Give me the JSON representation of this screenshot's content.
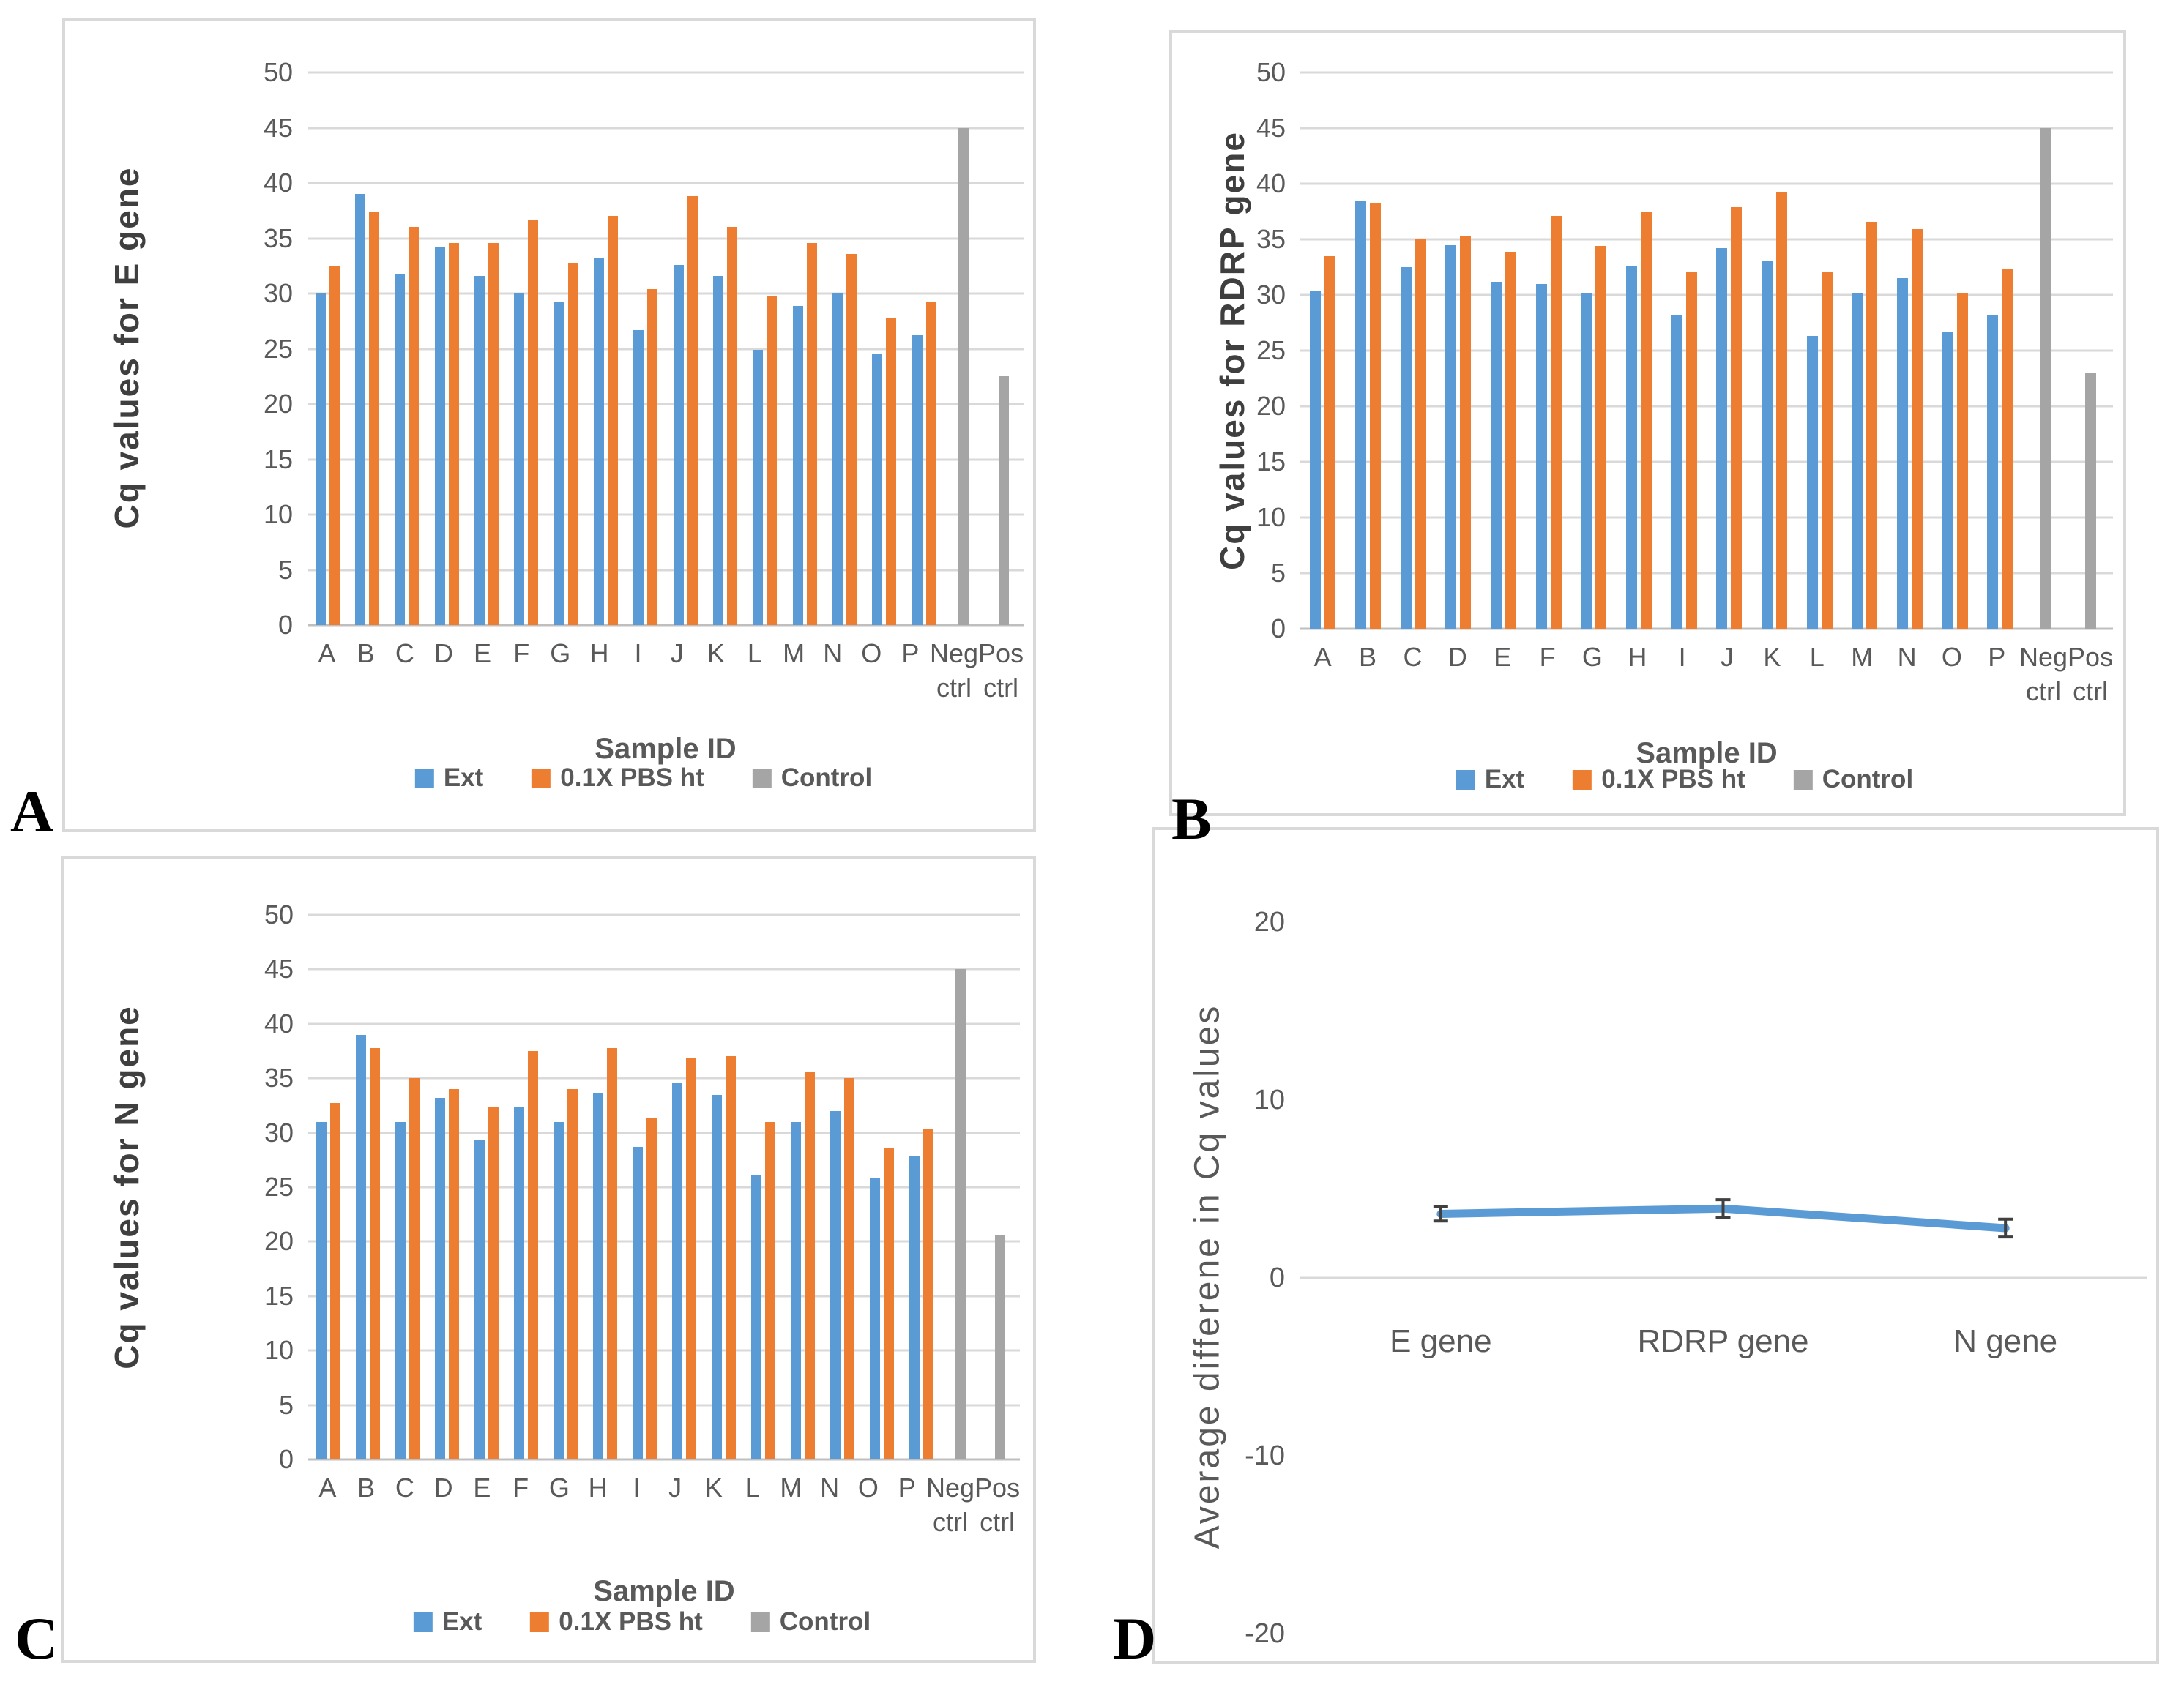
{
  "panel_letters": [
    "A",
    "B",
    "C",
    "D"
  ],
  "colors": {
    "ext_blue": "#5B9BD5",
    "pbs_orange": "#ED7D31",
    "control_gray": "#A5A5A5",
    "gridline": "#D9D9D9",
    "text_gray": "#595959",
    "error_bar": "#404040"
  },
  "chart_data": [
    {
      "id": "A",
      "type": "bar",
      "ylabel": "Cq values for E gene",
      "xlabel": "Sample ID",
      "ylim": [
        0,
        50
      ],
      "ytick_step": 5,
      "grid": true,
      "legend_position": "bottom",
      "categories": [
        "A",
        "B",
        "C",
        "D",
        "E",
        "F",
        "G",
        "H",
        "I",
        "J",
        "K",
        "L",
        "M",
        "N",
        "O",
        "P",
        "Neg ctrl",
        "Pos ctrl"
      ],
      "series": [
        {
          "name": "Ext",
          "color": "#5B9BD5",
          "values": [
            30.0,
            39.0,
            31.8,
            34.2,
            31.6,
            30.1,
            29.2,
            33.2,
            26.7,
            32.6,
            31.6,
            24.9,
            28.9,
            30.1,
            24.6,
            26.2,
            null,
            null
          ]
        },
        {
          "name": "0.1X PBS ht",
          "color": "#ED7D31",
          "values": [
            32.5,
            37.4,
            36.0,
            34.6,
            34.6,
            36.6,
            32.8,
            37.0,
            30.4,
            38.8,
            36.0,
            29.8,
            34.6,
            33.6,
            27.8,
            29.2,
            null,
            null
          ]
        },
        {
          "name": "Control",
          "color": "#A5A5A5",
          "values": [
            null,
            null,
            null,
            null,
            null,
            null,
            null,
            null,
            null,
            null,
            null,
            null,
            null,
            null,
            null,
            null,
            45,
            22.5
          ]
        }
      ]
    },
    {
      "id": "B",
      "type": "bar",
      "ylabel": "Cq values for RDRP gene",
      "xlabel": "Sample ID",
      "ylim": [
        0,
        50
      ],
      "ytick_step": 5,
      "grid": true,
      "legend_position": "bottom",
      "categories": [
        "A",
        "B",
        "C",
        "D",
        "E",
        "F",
        "G",
        "H",
        "I",
        "J",
        "K",
        "L",
        "M",
        "N",
        "O",
        "P",
        "Neg ctrl",
        "Pos ctrl"
      ],
      "series": [
        {
          "name": "Ext",
          "color": "#5B9BD5",
          "values": [
            30.4,
            38.5,
            32.5,
            34.5,
            31.2,
            31.0,
            30.1,
            32.6,
            28.2,
            34.2,
            33.0,
            26.3,
            30.1,
            31.5,
            26.7,
            28.2,
            null,
            null
          ]
        },
        {
          "name": "0.1X PBS ht",
          "color": "#ED7D31",
          "values": [
            33.5,
            38.2,
            35.0,
            35.3,
            33.9,
            37.1,
            34.4,
            37.5,
            32.1,
            37.9,
            39.3,
            32.1,
            36.6,
            35.9,
            30.1,
            32.3,
            null,
            null
          ]
        },
        {
          "name": "Control",
          "color": "#A5A5A5",
          "values": [
            null,
            null,
            null,
            null,
            null,
            null,
            null,
            null,
            null,
            null,
            null,
            null,
            null,
            null,
            null,
            null,
            45,
            23.0
          ]
        }
      ]
    },
    {
      "id": "C",
      "type": "bar",
      "ylabel": "Cq values for N gene",
      "xlabel": "Sample ID",
      "ylim": [
        0,
        50
      ],
      "ytick_step": 5,
      "grid": true,
      "legend_position": "bottom",
      "categories": [
        "A",
        "B",
        "C",
        "D",
        "E",
        "F",
        "G",
        "H",
        "I",
        "J",
        "K",
        "L",
        "M",
        "N",
        "O",
        "P",
        "Neg ctrl",
        "Pos ctrl"
      ],
      "series": [
        {
          "name": "Ext",
          "color": "#5B9BD5",
          "values": [
            31.0,
            39.0,
            31.0,
            33.2,
            29.4,
            32.4,
            31.0,
            33.7,
            28.7,
            34.6,
            33.5,
            26.1,
            31.0,
            32.0,
            25.9,
            27.9,
            null,
            null
          ]
        },
        {
          "name": "0.1X PBS ht",
          "color": "#ED7D31",
          "values": [
            32.7,
            37.8,
            35.0,
            34.0,
            32.4,
            37.5,
            34.0,
            37.8,
            31.3,
            36.8,
            37.0,
            31.0,
            35.6,
            35.0,
            28.6,
            30.4,
            null,
            null
          ]
        },
        {
          "name": "Control",
          "color": "#A5A5A5",
          "values": [
            null,
            null,
            null,
            null,
            null,
            null,
            null,
            null,
            null,
            null,
            null,
            null,
            null,
            null,
            null,
            null,
            45,
            20.6
          ]
        }
      ]
    },
    {
      "id": "D",
      "type": "line",
      "ylabel": "Average differene in Cq values",
      "xlabel": "",
      "ylim": [
        -20,
        20
      ],
      "yticks": [
        20,
        10,
        0,
        -10,
        -20
      ],
      "grid": false,
      "categories": [
        "E gene",
        "RDRP gene",
        "N gene"
      ],
      "series": [
        {
          "name": "Average difference in Cq values",
          "color": "#5B9BD5",
          "values": [
            3.6,
            3.9,
            2.8
          ],
          "error": [
            0.4,
            0.5,
            0.5
          ]
        }
      ]
    }
  ]
}
